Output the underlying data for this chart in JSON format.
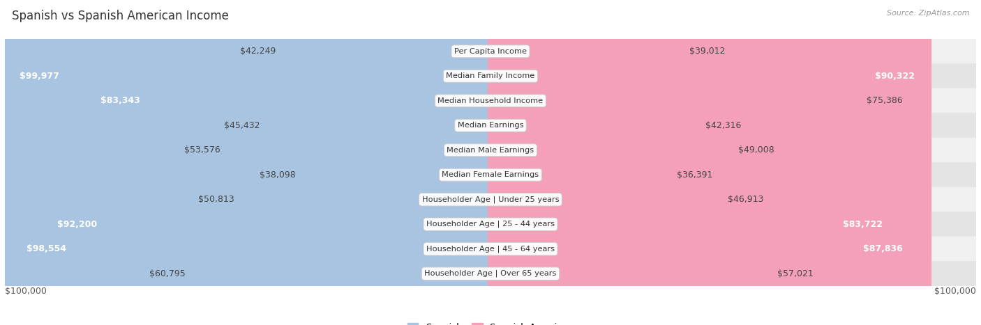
{
  "title": "Spanish vs Spanish American Income",
  "source": "Source: ZipAtlas.com",
  "categories": [
    "Per Capita Income",
    "Median Family Income",
    "Median Household Income",
    "Median Earnings",
    "Median Male Earnings",
    "Median Female Earnings",
    "Householder Age | Under 25 years",
    "Householder Age | 25 - 44 years",
    "Householder Age | 45 - 64 years",
    "Householder Age | Over 65 years"
  ],
  "spanish_values": [
    42249,
    99977,
    83343,
    45432,
    53576,
    38098,
    50813,
    92200,
    98554,
    60795
  ],
  "spanish_american_values": [
    39012,
    90322,
    75386,
    42316,
    49008,
    36391,
    46913,
    83722,
    87836,
    57021
  ],
  "spanish_labels": [
    "$42,249",
    "$99,977",
    "$83,343",
    "$45,432",
    "$53,576",
    "$38,098",
    "$50,813",
    "$92,200",
    "$98,554",
    "$60,795"
  ],
  "spanish_american_labels": [
    "$39,012",
    "$90,322",
    "$75,386",
    "$42,316",
    "$49,008",
    "$36,391",
    "$46,913",
    "$83,722",
    "$87,836",
    "$57,021"
  ],
  "spanish_color_light": "#a8c4e0",
  "spanish_color_dark": "#6fa8d4",
  "spanish_american_color_light": "#f4a0b8",
  "spanish_american_color_dark": "#e8608a",
  "max_value": 100000,
  "bar_height": 0.58,
  "row_colors": [
    "#f0f0f0",
    "#e4e4e4"
  ],
  "label_fontsize": 9,
  "title_fontsize": 12,
  "title_color": "#333333",
  "legend_labels": [
    "Spanish",
    "Spanish American"
  ],
  "axis_label": "$100,000",
  "white_label_threshold_spanish": 0.75,
  "white_label_threshold_sa": 0.8
}
